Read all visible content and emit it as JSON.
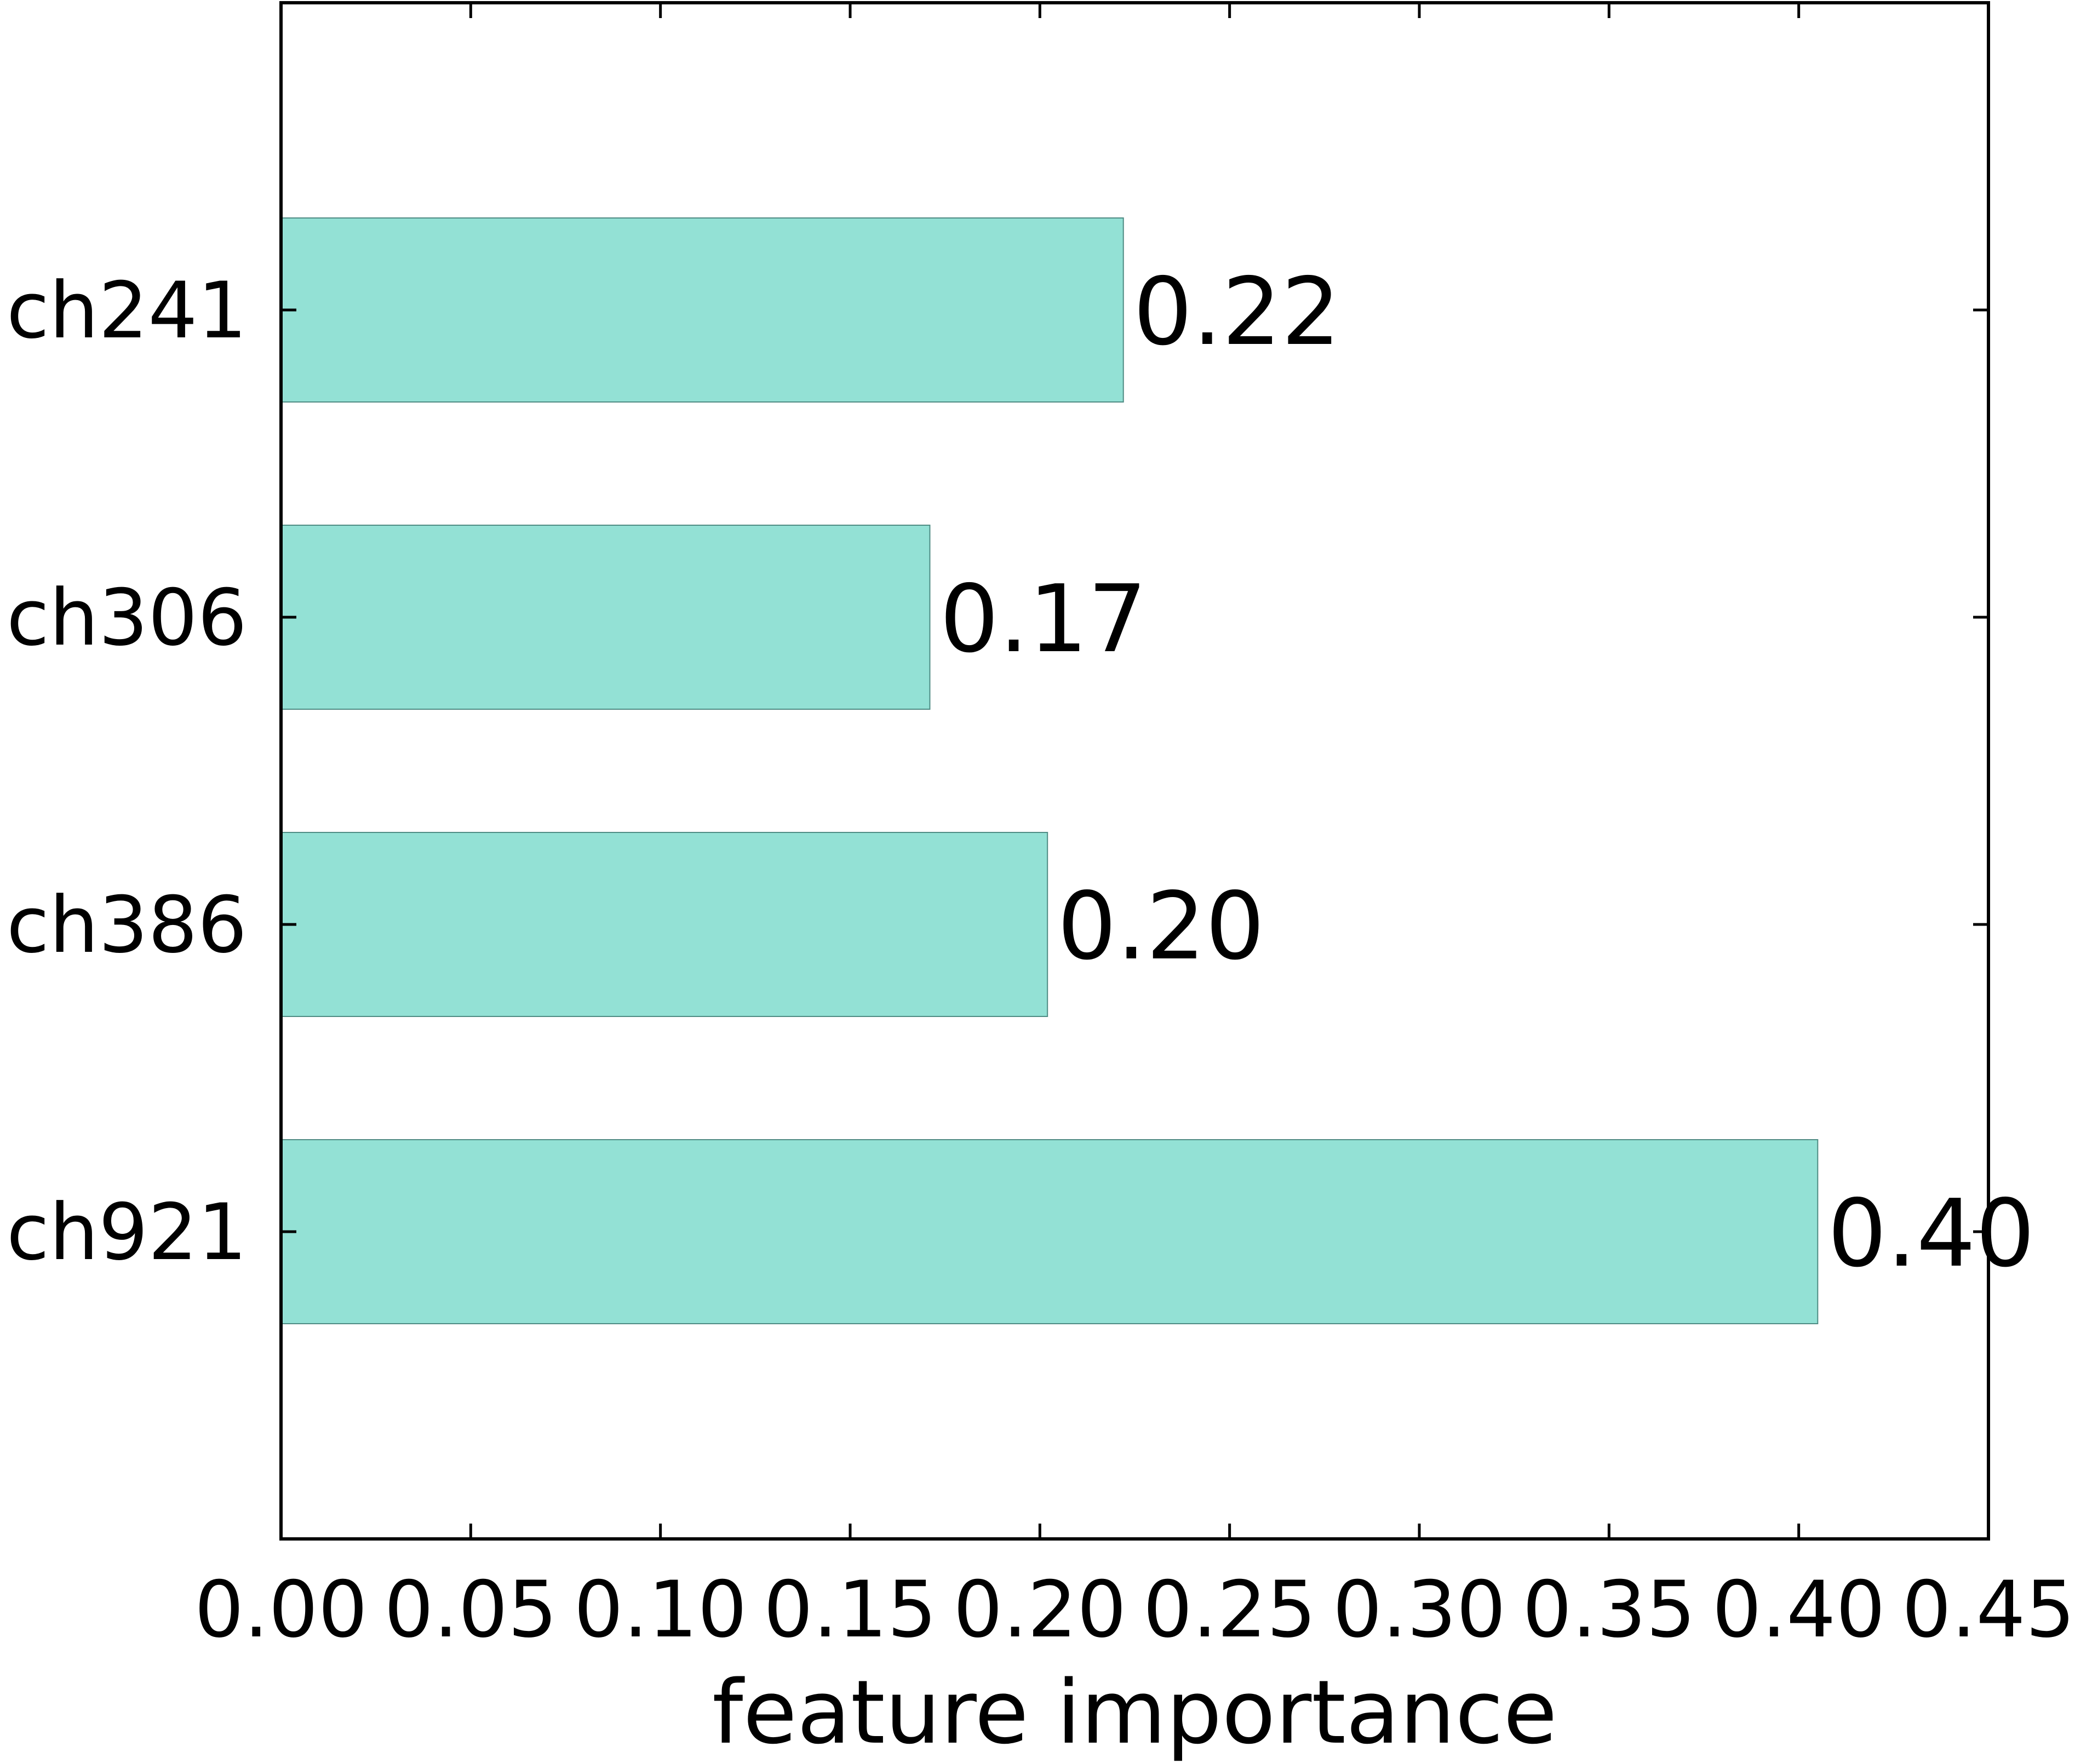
{
  "chart_data": {
    "type": "bar",
    "orientation": "horizontal",
    "categories": [
      "ch241",
      "ch306",
      "ch386",
      "ch921"
    ],
    "values": [
      0.222,
      0.171,
      0.202,
      0.405
    ],
    "value_labels": [
      "0.22",
      "0.17",
      "0.20",
      "0.40"
    ],
    "title": "",
    "xlabel": "feature importance",
    "ylabel": "",
    "xlim": [
      0.0,
      0.45
    ],
    "xticks": [
      0.0,
      0.05,
      0.1,
      0.15,
      0.2,
      0.25,
      0.3,
      0.35,
      0.4,
      0.45
    ],
    "xtick_labels": [
      "0.00",
      "0.05",
      "0.10",
      "0.15",
      "0.20",
      "0.25",
      "0.30",
      "0.35",
      "0.40",
      "0.45"
    ],
    "grid": false,
    "legend": "none",
    "bar_color": "#93e1d5",
    "bar_edge_color": "#4f8c84"
  }
}
